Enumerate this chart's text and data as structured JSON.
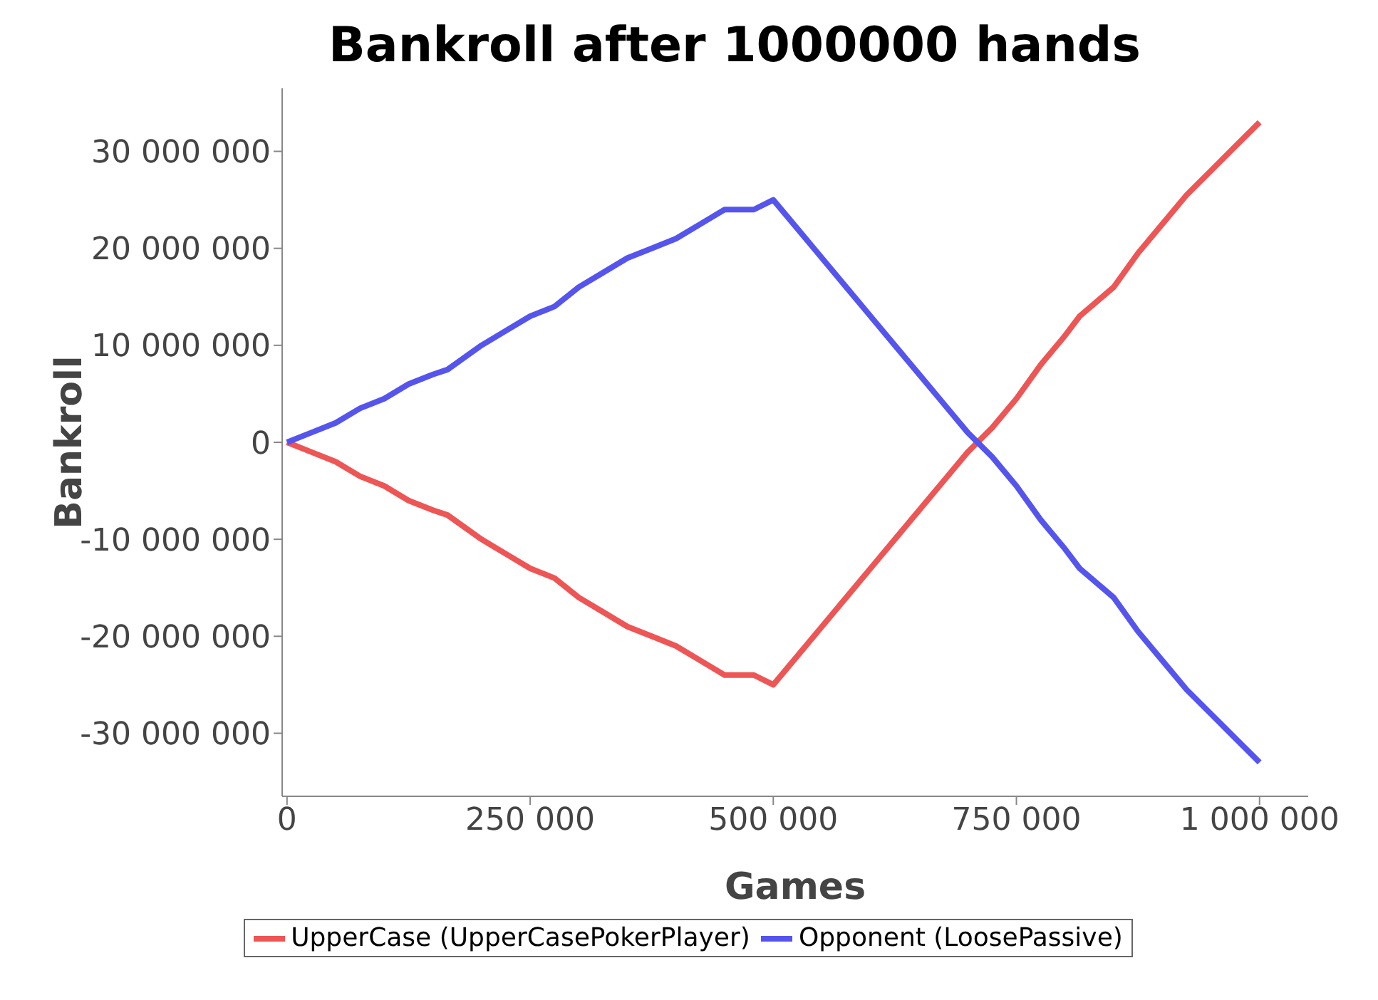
{
  "chart_data": {
    "type": "line",
    "title": "Bankroll after 1000000 hands",
    "xlabel": "Games",
    "ylabel": "Bankroll",
    "x": [
      0,
      25000,
      50000,
      75000,
      100000,
      125000,
      150000,
      165000,
      200000,
      225000,
      250000,
      275000,
      300000,
      325000,
      350000,
      375000,
      400000,
      425000,
      450000,
      480000,
      500000,
      525000,
      550000,
      575000,
      600000,
      625000,
      650000,
      675000,
      700000,
      725000,
      750000,
      775000,
      800000,
      815000,
      850000,
      875000,
      900000,
      925000,
      950000,
      975000,
      1000000
    ],
    "series": [
      {
        "name": "UpperCase (UpperCasePokerPlayer)",
        "color": "#ee5555",
        "values": [
          0,
          -1000000,
          -2000000,
          -3500000,
          -4500000,
          -6000000,
          -7000000,
          -7500000,
          -10000000,
          -11500000,
          -13000000,
          -14000000,
          -16000000,
          -17500000,
          -19000000,
          -20000000,
          -21000000,
          -22500000,
          -24000000,
          -24000000,
          -25000000,
          -22000000,
          -19000000,
          -16000000,
          -13000000,
          -10000000,
          -7000000,
          -4000000,
          -1000000,
          1500000,
          4500000,
          8000000,
          11000000,
          13000000,
          16000000,
          19500000,
          22500000,
          25500000,
          28000000,
          30500000,
          33000000
        ]
      },
      {
        "name": "Opponent (LoosePassive)",
        "color": "#5555ee",
        "values": [
          0,
          1000000,
          2000000,
          3500000,
          4500000,
          6000000,
          7000000,
          7500000,
          10000000,
          11500000,
          13000000,
          14000000,
          16000000,
          17500000,
          19000000,
          20000000,
          21000000,
          22500000,
          24000000,
          24000000,
          25000000,
          22000000,
          19000000,
          16000000,
          13000000,
          10000000,
          7000000,
          4000000,
          1000000,
          -1500000,
          -4500000,
          -8000000,
          -11000000,
          -13000000,
          -16000000,
          -19500000,
          -22500000,
          -25500000,
          -28000000,
          -30500000,
          -33000000
        ]
      }
    ],
    "xlim": [
      -5000,
      1050000
    ],
    "ylim": [
      -36500000,
      36500000
    ],
    "xticks": [
      0,
      {
        "value": 250000,
        "label": "250 000"
      },
      {
        "value": 500000,
        "label": "500 000"
      },
      {
        "value": 750000,
        "label": "750 000"
      },
      {
        "value": 1000000,
        "label": "1 000 000"
      }
    ],
    "yticks": [
      {
        "value": -30000000,
        "label": "-30 000 000"
      },
      {
        "value": -20000000,
        "label": "-20 000 000"
      },
      {
        "value": -10000000,
        "label": "-10 000 000"
      },
      0,
      {
        "value": 10000000,
        "label": "10 000 000"
      },
      {
        "value": 20000000,
        "label": "20 000 000"
      },
      {
        "value": 30000000,
        "label": "30 000 000"
      }
    ],
    "grid": false,
    "legend": "bottom",
    "marker": "none",
    "line_style": "solid"
  }
}
